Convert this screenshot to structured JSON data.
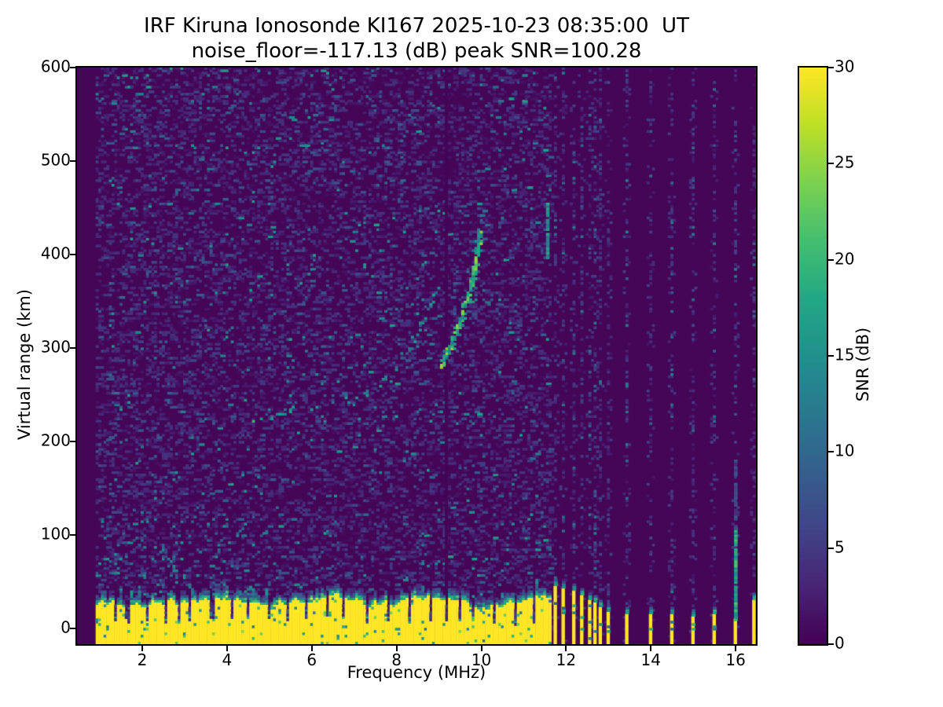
{
  "chart_data": {
    "type": "heatmap",
    "title_line1": "IRF Kiruna Ionosonde KI167 2025-10-23 08:35:00  UT",
    "title_line2": "noise_floor=-117.13 (dB) peak SNR=100.28",
    "xlabel": "Frequency (MHz)",
    "ylabel": "Virtual range (km)",
    "xlim": [
      0.46,
      16.48
    ],
    "ylim": [
      -17,
      600
    ],
    "x_ticks": [
      2,
      4,
      6,
      8,
      10,
      12,
      14,
      16
    ],
    "y_ticks": [
      0,
      100,
      200,
      300,
      400,
      500,
      600
    ],
    "colorbar": {
      "label": "SNR (dB)",
      "vmin": 0,
      "vmax": 30,
      "ticks": [
        0,
        5,
        10,
        15,
        20,
        25,
        30
      ]
    },
    "colormap": {
      "name": "viridis",
      "background_hex": "#440154",
      "peak_hex": "#fde725",
      "stops": [
        [
          0.0,
          [
            68,
            1,
            84
          ]
        ],
        [
          0.1,
          [
            72,
            36,
            117
          ]
        ],
        [
          0.2,
          [
            65,
            68,
            135
          ]
        ],
        [
          0.3,
          [
            53,
            95,
            141
          ]
        ],
        [
          0.4,
          [
            42,
            120,
            142
          ]
        ],
        [
          0.5,
          [
            33,
            144,
            141
          ]
        ],
        [
          0.6,
          [
            34,
            168,
            132
          ]
        ],
        [
          0.7,
          [
            68,
            190,
            112
          ]
        ],
        [
          0.8,
          [
            122,
            209,
            81
          ]
        ],
        [
          0.9,
          [
            189,
            223,
            38
          ]
        ],
        [
          1.0,
          [
            253,
            231,
            37
          ]
        ]
      ]
    },
    "grid": {
      "cell_mhz": 0.0625,
      "cell_km": 2.5
    },
    "sweep": {
      "continuous_range_mhz": [
        0.9,
        11.63
      ],
      "discrete_stripes": [
        {
          "f": 11.72,
          "h_km": 44
        },
        {
          "f": 11.91,
          "h_km": 40
        },
        {
          "f": 12.13,
          "h_km": 37
        },
        {
          "f": 12.31,
          "h_km": 33
        },
        {
          "f": 12.5,
          "h_km": 29
        },
        {
          "f": 12.65,
          "h_km": 25
        },
        {
          "f": 12.8,
          "h_km": 21
        },
        {
          "f": 12.95,
          "h_km": 16
        },
        {
          "f": 13.43,
          "h_km": 12
        },
        {
          "f": 13.98,
          "h_km": 13
        },
        {
          "f": 14.46,
          "h_km": 12
        },
        {
          "f": 14.96,
          "h_km": 11
        },
        {
          "f": 15.46,
          "h_km": 13
        },
        {
          "f": 15.98,
          "h_km": 9
        },
        {
          "f": 16.39,
          "h_km": 28
        }
      ]
    },
    "ground_band": {
      "mean_top_km": 26,
      "min_top_km": 15,
      "max_top_km": 38,
      "notch_freqs": [
        1.35,
        1.62,
        2.08,
        2.5,
        2.86,
        3.1,
        3.62,
        4.08,
        4.45,
        4.98,
        5.4,
        5.85,
        6.32,
        6.7,
        7.28,
        7.75,
        8.3,
        8.75,
        9.17,
        9.45,
        9.8,
        10.3,
        10.75,
        11.2
      ]
    },
    "noise": {
      "continuous": {
        "p1": 0.26,
        "v1": [
          1,
          5
        ],
        "p2": 0.05,
        "v2": [
          5,
          9
        ],
        "p3": 0.013,
        "v3": [
          9,
          17
        ]
      },
      "low_freq_boost": {
        "f_max": 4.0,
        "km_max": 120,
        "p": 0.05,
        "v": [
          8,
          16
        ]
      },
      "discrete_columns": {
        "p1": 0.3,
        "v1": [
          1.5,
          6
        ],
        "p2": 0.045,
        "v2": [
          6,
          13
        ]
      }
    },
    "trace_segments": [
      {
        "name": "F1-ledge",
        "points": [
          [
            4.6,
            220
          ],
          [
            5.0,
            224
          ],
          [
            5.3,
            229
          ],
          [
            5.52,
            236
          ]
        ],
        "snr": [
          11,
          20
        ],
        "skip": 0.06,
        "thick": 1
      },
      {
        "name": "F2-ordinary",
        "points": [
          [
            6.85,
            240
          ],
          [
            7.25,
            250
          ],
          [
            7.65,
            263
          ],
          [
            8.0,
            279
          ],
          [
            8.3,
            300
          ],
          [
            8.55,
            323
          ],
          [
            8.78,
            346
          ],
          [
            8.92,
            360
          ]
        ],
        "snr": [
          8,
          17
        ],
        "skip": 0.5,
        "thick": 1
      },
      {
        "name": "F2-extraordinary",
        "points": [
          [
            9.02,
            278
          ],
          [
            9.25,
            300
          ],
          [
            9.45,
            322
          ],
          [
            9.62,
            346
          ],
          [
            9.76,
            372
          ],
          [
            9.87,
            398
          ],
          [
            9.95,
            424
          ]
        ],
        "snr": [
          12,
          26
        ],
        "skip": 0.22,
        "thick": 2
      },
      {
        "name": "F2-extraordinary-top",
        "points": [
          [
            9.97,
            428
          ],
          [
            10.06,
            446
          ]
        ],
        "snr": [
          8,
          14
        ],
        "skip": 0.6,
        "thick": 1
      }
    ],
    "streaks": [
      {
        "f": 9.17,
        "km": [
          -17,
          600
        ],
        "snr": [
          0.3,
          0.3
        ],
        "skip": 0,
        "solid": true
      },
      {
        "f": 11.54,
        "km": [
          396,
          452
        ],
        "snr": [
          11,
          19
        ],
        "skip": 0.12,
        "solid": false
      },
      {
        "f": 15.98,
        "km": [
          8,
          106
        ],
        "snr": [
          13,
          22
        ],
        "skip": 0.05,
        "solid": false
      },
      {
        "f": 15.98,
        "km": [
          106,
          178
        ],
        "snr": [
          4,
          9
        ],
        "skip": 0.3,
        "solid": false
      }
    ]
  }
}
